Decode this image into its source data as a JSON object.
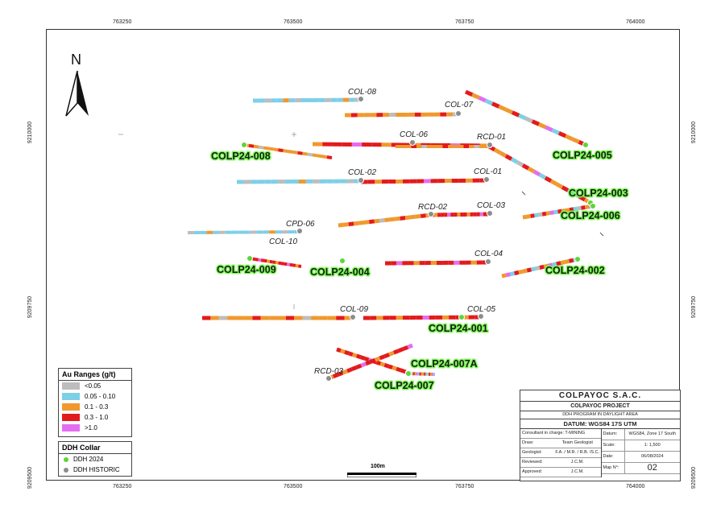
{
  "coords": {
    "top_x": [
      "763250",
      "763500",
      "763750",
      "764000"
    ],
    "bottom_x": [
      "763250",
      "763500",
      "763750",
      "764000"
    ],
    "left_y": [
      "9210000",
      "9209750",
      "9209500"
    ],
    "right_y": [
      "9210000",
      "9209750",
      "9209500"
    ]
  },
  "north": {
    "label": "N"
  },
  "holes_historic": [
    {
      "name": "COL-08"
    },
    {
      "name": "COL-07"
    },
    {
      "name": "COL-06"
    },
    {
      "name": "RCD-01"
    },
    {
      "name": "COL-02"
    },
    {
      "name": "COL-01"
    },
    {
      "name": "RCD-02"
    },
    {
      "name": "COL-03"
    },
    {
      "name": "CPD-06"
    },
    {
      "name": "COL-10"
    },
    {
      "name": "COL-04"
    },
    {
      "name": "COL-09"
    },
    {
      "name": "COL-05"
    },
    {
      "name": "RCD-03"
    }
  ],
  "holes_2024": [
    {
      "name": "COLP24-008"
    },
    {
      "name": "COLP24-005"
    },
    {
      "name": "COLP24-003"
    },
    {
      "name": "COLP24-006"
    },
    {
      "name": "COLP24-009"
    },
    {
      "name": "COLP24-004"
    },
    {
      "name": "COLP24-002"
    },
    {
      "name": "COLP24-001"
    },
    {
      "name": "COLP24-007A"
    },
    {
      "name": "COLP24-007"
    }
  ],
  "legend_au": {
    "title": "Au Ranges (g/t)",
    "items": [
      {
        "label": "<0.05",
        "color": "#bdbdbd"
      },
      {
        "label": "0.05 - 0.10",
        "color": "#7ecfe8"
      },
      {
        "label": "0.1 - 0.3",
        "color": "#f0992e"
      },
      {
        "label": "0.3 - 1.0",
        "color": "#e31a1c"
      },
      {
        "label": ">1.0",
        "color": "#e36ef0"
      }
    ]
  },
  "legend_ddh": {
    "title": "DDH Collar",
    "items": [
      {
        "label": "DDH 2024",
        "color": "#5ed43a"
      },
      {
        "label": "DDH HISTORIC",
        "color": "#8c8c8c"
      }
    ]
  },
  "scale": {
    "label": "100m"
  },
  "title_block": {
    "company": "COLPAYOC S.A.C.",
    "project": "COLPAYOC PROJECT",
    "program": "DDH PROGRAM IN DAYLIGHT AREA",
    "datum_title": "DATUM: WGS84 17S UTM",
    "consultant": "Consultant in charge: T-MINING",
    "draw_k": "Draw:",
    "draw_v": "Team Geologist",
    "geol_k": "Geologist:",
    "geol_v": "F.A. / M.R. / R.B. /S.C.",
    "rev_k": "Reviewed:",
    "rev_v": "J.C.M.",
    "appr_k": "Approved:",
    "appr_v": "J.C.M.",
    "datum_k": "Datum:",
    "datum_v": "WGS84, Zone 17 South",
    "scale_k": "Scale:",
    "scale_v": "1: 1,500",
    "date_k": "Date:",
    "date_v": "06/08/2024",
    "mapno_k": "Map N°:",
    "mapno_v": "02"
  }
}
